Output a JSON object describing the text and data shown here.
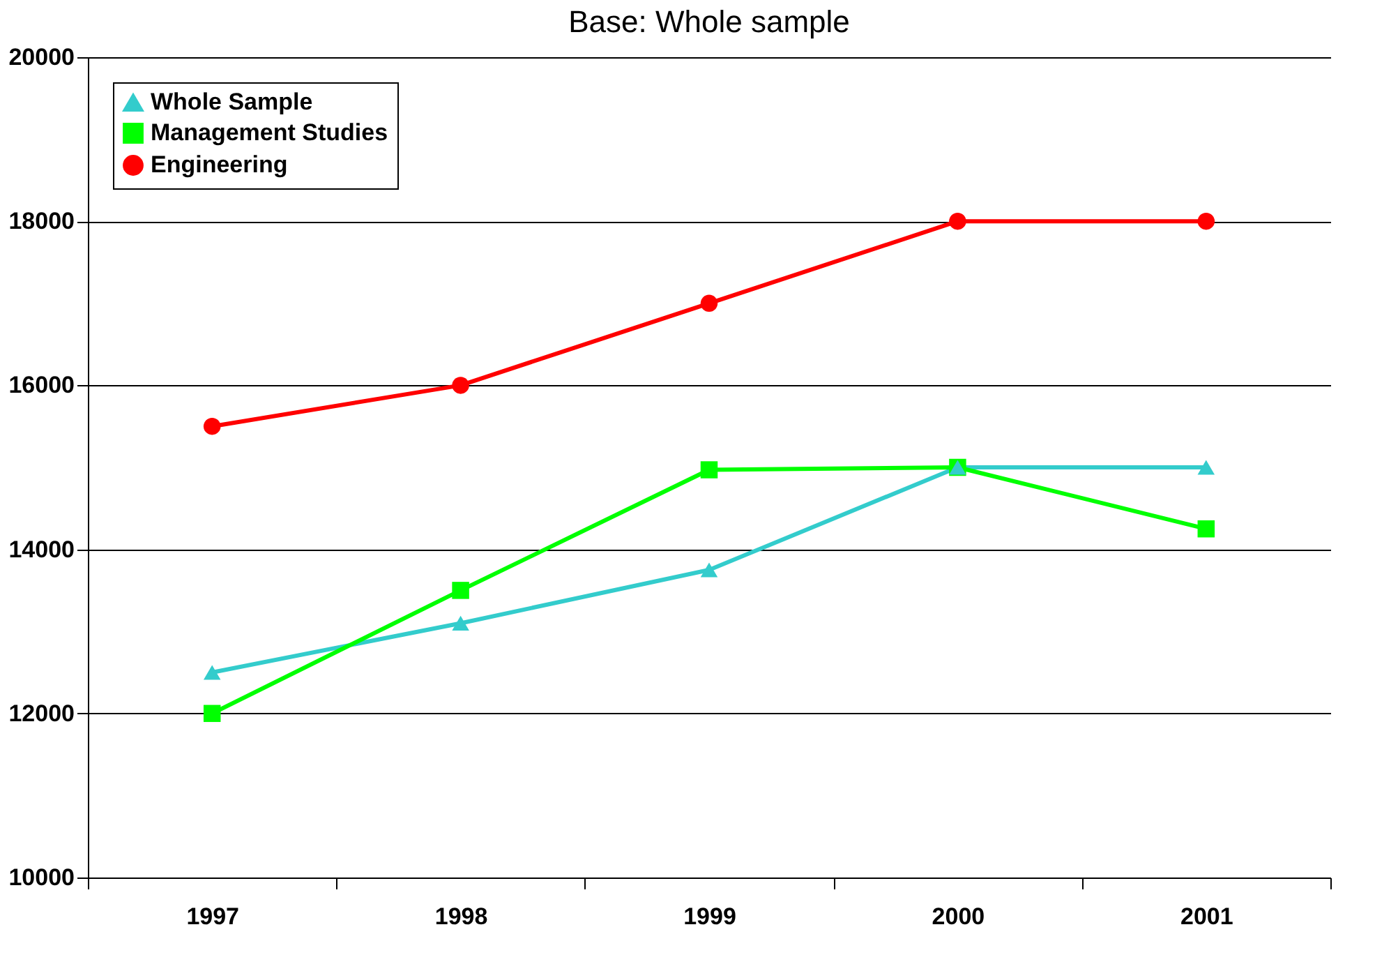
{
  "chart_data": {
    "type": "line",
    "title": "Base:  Whole sample",
    "categories": [
      "1997",
      "1998",
      "1999",
      "2000",
      "2001"
    ],
    "series": [
      {
        "name": "Whole Sample",
        "color": "#33cccc",
        "marker": "triangle",
        "values": [
          12500,
          13100,
          13750,
          15000,
          15000
        ]
      },
      {
        "name": "Management Studies",
        "color": "#00ff00",
        "marker": "square",
        "values": [
          12000,
          13500,
          14970,
          15000,
          14250
        ]
      },
      {
        "name": "Engineering",
        "color": "#ff0000",
        "marker": "circle",
        "values": [
          15500,
          16000,
          17000,
          18000,
          18000
        ]
      }
    ],
    "ylim": [
      10000,
      20000
    ],
    "yticks": [
      10000,
      12000,
      14000,
      16000,
      18000,
      20000
    ],
    "grid": "y",
    "legend": "top left",
    "line_style": "solid"
  }
}
